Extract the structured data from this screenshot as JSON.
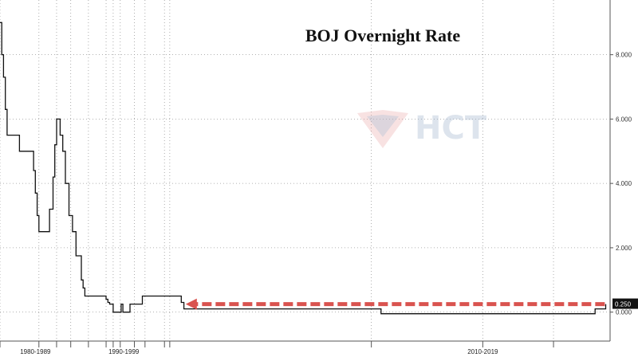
{
  "chart_data": {
    "type": "line",
    "title": "BOJ Overnight Rate",
    "x_range": [
      1985.0,
      2019.5
    ],
    "ylim": [
      -0.9,
      9.7
    ],
    "y_ticks": [
      0,
      2,
      4,
      6,
      8
    ],
    "y_tick_labels": [
      "0.000",
      "2.000",
      "4.000",
      "6.000",
      "8.000"
    ],
    "x_axis_labels": [
      {
        "label": "1980-1989",
        "x": 1987.0
      },
      {
        "label": "1990-1999",
        "x": 1992.0
      },
      {
        "label": "2010-2019",
        "x": 2012.3
      }
    ],
    "x_major_ticks": [
      1985.0,
      1987.2,
      1988.2,
      1989.0,
      1990.0,
      1991.0,
      1991.4,
      1991.8,
      1992.6,
      1993.2,
      1994.3,
      1994.6,
      2006.0,
      2012.3,
      2016.3
    ],
    "grid": true,
    "series": [
      {
        "color": "#111111",
        "points": [
          [
            1985.0,
            9.0
          ],
          [
            1985.1,
            8.0
          ],
          [
            1985.2,
            7.3
          ],
          [
            1985.3,
            6.3
          ],
          [
            1985.4,
            5.5
          ],
          [
            1986.0,
            5.5
          ],
          [
            1986.1,
            5.0
          ],
          [
            1986.8,
            5.0
          ],
          [
            1986.9,
            4.4
          ],
          [
            1987.0,
            3.7
          ],
          [
            1987.1,
            3.0
          ],
          [
            1987.2,
            2.5
          ],
          [
            1987.7,
            2.5
          ],
          [
            1987.8,
            3.2
          ],
          [
            1988.0,
            4.2
          ],
          [
            1988.1,
            5.2
          ],
          [
            1988.2,
            6.0
          ],
          [
            1988.35,
            6.0
          ],
          [
            1988.4,
            5.5
          ],
          [
            1988.55,
            5.0
          ],
          [
            1988.7,
            4.0
          ],
          [
            1988.9,
            3.0
          ],
          [
            1989.1,
            2.5
          ],
          [
            1989.3,
            1.75
          ],
          [
            1989.5,
            1.75
          ],
          [
            1989.6,
            1.0
          ],
          [
            1989.7,
            0.75
          ],
          [
            1989.8,
            0.5
          ],
          [
            1990.9,
            0.5
          ],
          [
            1991.0,
            0.4
          ],
          [
            1991.1,
            0.3
          ],
          [
            1991.2,
            0.25
          ],
          [
            1991.4,
            0.0
          ],
          [
            1991.8,
            0.0
          ],
          [
            1991.85,
            0.25
          ],
          [
            1991.95,
            0.0
          ],
          [
            1992.3,
            0.0
          ],
          [
            1992.35,
            0.25
          ],
          [
            1993.0,
            0.25
          ],
          [
            1993.05,
            0.5
          ],
          [
            1995.2,
            0.5
          ],
          [
            1995.25,
            0.3
          ],
          [
            1995.4,
            0.1
          ],
          [
            2006.5,
            0.1
          ],
          [
            2006.55,
            -0.05
          ],
          [
            2018.6,
            -0.05
          ],
          [
            2018.65,
            0.1
          ],
          [
            2019.2,
            0.1
          ],
          [
            2019.25,
            0.25
          ]
        ]
      }
    ],
    "annotation": {
      "type": "dashed-arrow",
      "color": "#d9534f",
      "y": 0.25,
      "x_from": 2019.2,
      "x_to": 1995.5
    },
    "last_value_label": "0.250",
    "watermark": "HCT"
  }
}
